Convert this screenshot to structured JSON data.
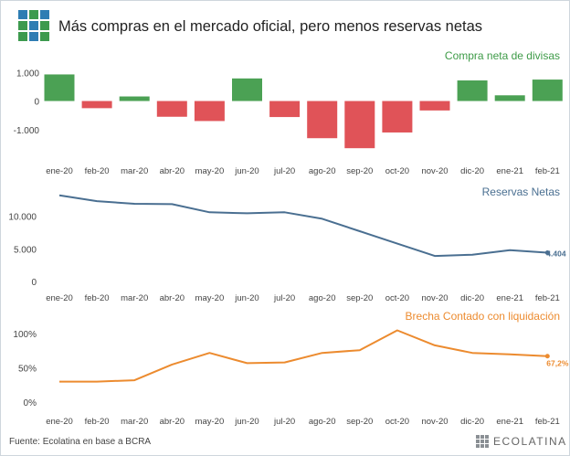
{
  "header": {
    "title": "Más compras en el mercado oficial, pero menos reservas netas",
    "logo_icon": "grid-logo-icon",
    "logo_colors": [
      "#2e7db3",
      "#3d9a4e",
      "#2e7db3",
      "#3d9a4e",
      "#2e7db3",
      "#3d9a4e",
      "#3d9a4e",
      "#2e7db3",
      "#3d9a4e"
    ]
  },
  "footer": {
    "source": "Fuente: Ecolatina en base a BCRA",
    "brand": "ECOLATINA"
  },
  "chart_data": [
    {
      "type": "bar",
      "title": "Compra neta de divisas",
      "categories": [
        "ene-20",
        "feb-20",
        "mar-20",
        "abr-20",
        "may-20",
        "jun-20",
        "jul-20",
        "ago-20",
        "sep-20",
        "oct-20",
        "nov-20",
        "dic-20",
        "ene-21",
        "feb-21"
      ],
      "values": [
        930,
        -250,
        160,
        -550,
        -700,
        790,
        -560,
        -1300,
        -1650,
        -1100,
        -330,
        720,
        200,
        750
      ],
      "ylim": [
        -1900,
        1200
      ],
      "yticks": [
        1000,
        0,
        -1000
      ],
      "ytick_labels": [
        "1.000",
        "0",
        "-1.000"
      ],
      "colors": {
        "positive": "#4ba154",
        "negative": "#e05358",
        "title": "#3e9b48"
      },
      "grid": false
    },
    {
      "type": "line",
      "title": "Reservas Netas",
      "categories": [
        "ene-20",
        "feb-20",
        "mar-20",
        "abr-20",
        "may-20",
        "jun-20",
        "jul-20",
        "ago-20",
        "sep-20",
        "oct-20",
        "nov-20",
        "dic-20",
        "ene-21",
        "feb-21"
      ],
      "series": [
        {
          "values": [
            13200,
            12300,
            11900,
            11850,
            10600,
            10450,
            10600,
            9600,
            7700,
            5800,
            3900,
            4100,
            4800,
            4404
          ]
        }
      ],
      "ylim": [
        0,
        14000
      ],
      "yticks": [
        10000,
        5000,
        0
      ],
      "ytick_labels": [
        "10.000",
        "5.000",
        "0"
      ],
      "last_label": "4.404",
      "colors": {
        "line": "#4a6f91",
        "title": "#4a6f91"
      },
      "grid": false
    },
    {
      "type": "line",
      "title": "Brecha Contado con liquidación",
      "categories": [
        "ene-20",
        "feb-20",
        "mar-20",
        "abr-20",
        "may-20",
        "jun-20",
        "jul-20",
        "ago-20",
        "sep-20",
        "oct-20",
        "nov-20",
        "dic-20",
        "ene-21",
        "feb-21"
      ],
      "series": [
        {
          "values": [
            30,
            30,
            32,
            55,
            72,
            57,
            58,
            72,
            76,
            105,
            83,
            72,
            70,
            67.2
          ]
        }
      ],
      "ylim": [
        0,
        115
      ],
      "yticks": [
        100,
        50,
        0
      ],
      "ytick_labels": [
        "100%",
        "50%",
        "0%"
      ],
      "last_label": "67,2%",
      "colors": {
        "line": "#ec8b2f",
        "title": "#ec8b2f"
      },
      "grid": false
    }
  ]
}
